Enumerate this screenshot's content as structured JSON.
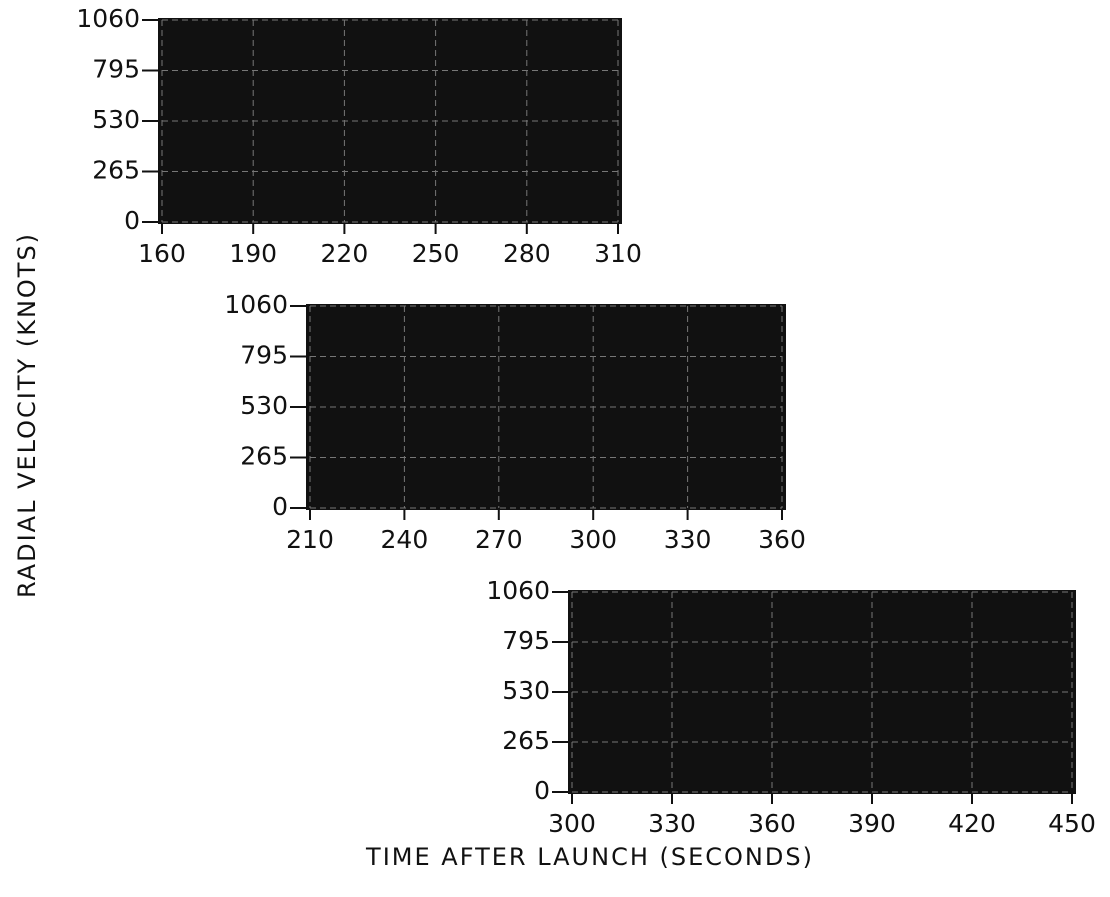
{
  "y_label": "RADIAL VELOCITY (KNOTS)",
  "x_label": "TIME AFTER LAUNCH (SECONDS)",
  "chart_data": [
    {
      "type": "image",
      "xlim": [
        160,
        310
      ],
      "ylim": [
        0,
        1060
      ],
      "xticks": [
        160,
        190,
        220,
        250,
        280,
        310
      ],
      "yticks": [
        0,
        265,
        530,
        795,
        1060
      ],
      "grid": true
    },
    {
      "type": "image",
      "xlim": [
        210,
        360
      ],
      "ylim": [
        0,
        1060
      ],
      "xticks": [
        210,
        240,
        270,
        300,
        330,
        360
      ],
      "yticks": [
        0,
        265,
        530,
        795,
        1060
      ],
      "grid": true
    },
    {
      "type": "image",
      "xlim": [
        300,
        450
      ],
      "ylim": [
        0,
        1060
      ],
      "xticks": [
        300,
        330,
        360,
        390,
        420,
        450
      ],
      "yticks": [
        0,
        265,
        530,
        795,
        1060
      ],
      "grid": true
    }
  ]
}
